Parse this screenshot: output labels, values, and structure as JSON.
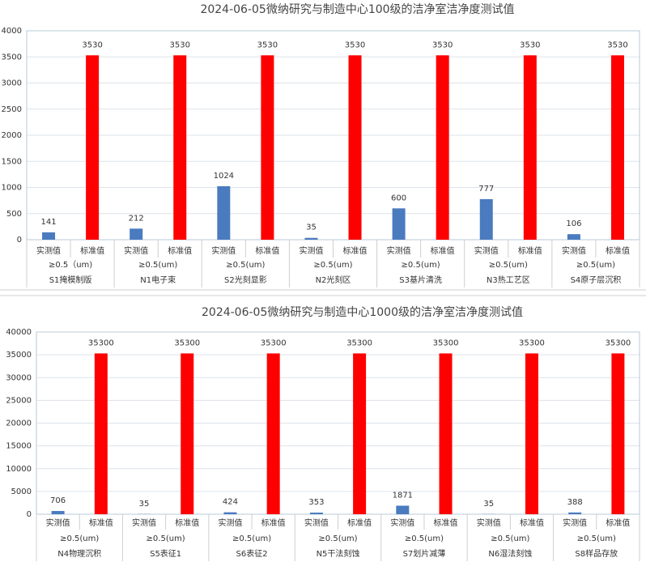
{
  "chart_data": [
    {
      "type": "bar",
      "title": "2024-06-05微纳研究与制造中心100级的洁净室洁净度测试值",
      "categories": [
        "S1掩模制版",
        "N1电子束",
        "S2光刻显影",
        "N2光刻区",
        "S3基片清洗",
        "N3热工艺区",
        "S4原子层沉积"
      ],
      "sub_categories": [
        "≥0.5（um)",
        "≥0.5(um)",
        "≥0.5(um)",
        "≥0.5(um)",
        "≥0.5(um)",
        "≥0.5(um)",
        "≥0.5(um)"
      ],
      "series": [
        {
          "name": "实测值",
          "color": "#4a7bbf",
          "values": [
            141,
            212,
            1024,
            35,
            600,
            777,
            106
          ]
        },
        {
          "name": "标准值",
          "color": "#ff0000",
          "values": [
            3530,
            3530,
            3530,
            3530,
            3530,
            3530,
            3530
          ]
        }
      ],
      "ylim": [
        0,
        4000
      ],
      "yticks": [
        0,
        500,
        1000,
        1500,
        2000,
        2500,
        3000,
        3500,
        4000
      ],
      "grid": true
    },
    {
      "type": "bar",
      "title": "2024-06-05微纳研究与制造中心1000级的洁净室洁净度测试值",
      "categories": [
        "N4物理沉积",
        "S5表征1",
        "S6表征2",
        "N5干法刻蚀",
        "S7划片减薄",
        "N6湿法刻蚀",
        "S8样品存放"
      ],
      "sub_categories": [
        "≥0.5(um)",
        "≥0.5(um)",
        "≥0.5(um)",
        "≥0.5(um)",
        "≥0.5(um)",
        "≥0.5(um)",
        "≥0.5(um)"
      ],
      "series": [
        {
          "name": "实测值",
          "color": "#4a7bbf",
          "values": [
            706,
            35,
            424,
            353,
            1871,
            35,
            388
          ]
        },
        {
          "name": "标准值",
          "color": "#ff0000",
          "values": [
            35300,
            35300,
            35300,
            35300,
            35300,
            35300,
            35300
          ]
        }
      ],
      "ylim": [
        0,
        40000
      ],
      "yticks": [
        0,
        5000,
        10000,
        15000,
        20000,
        25000,
        30000,
        35000,
        40000
      ],
      "grid": true
    }
  ]
}
